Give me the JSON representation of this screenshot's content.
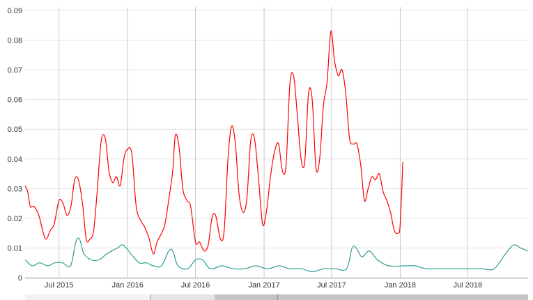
{
  "chart_data": {
    "type": "line",
    "title": "",
    "xlabel": "",
    "ylabel": "",
    "ylim": [
      0,
      0.09
    ],
    "xlim": [
      "2015-04-01",
      "2018-12-10"
    ],
    "grid": {
      "horizontal": true,
      "vertical": true
    },
    "legend": "none",
    "yticks": [
      {
        "value": 0,
        "label": "0"
      },
      {
        "value": 0.01,
        "label": "0.01"
      },
      {
        "value": 0.02,
        "label": "0.02"
      },
      {
        "value": 0.03,
        "label": "0.03"
      },
      {
        "value": 0.04,
        "label": "0.04"
      },
      {
        "value": 0.05,
        "label": "0.05"
      },
      {
        "value": 0.06,
        "label": "0.06"
      },
      {
        "value": 0.07,
        "label": "0.07"
      },
      {
        "value": 0.08,
        "label": "0.08"
      },
      {
        "value": 0.09,
        "label": "0.09"
      }
    ],
    "xticks": [
      {
        "date": "2015-07-01",
        "label": "Jul 2015"
      },
      {
        "date": "2016-01-01",
        "label": "Jan 2016"
      },
      {
        "date": "2016-07-01",
        "label": "Jul 2016"
      },
      {
        "date": "2017-01-01",
        "label": "Jan 2017"
      },
      {
        "date": "2017-07-01",
        "label": "Jul 2017"
      },
      {
        "date": "2018-01-01",
        "label": "Jan 2018"
      },
      {
        "date": "2018-07-01",
        "label": "Jul 2018"
      }
    ],
    "series": [
      {
        "color": "#ff0000",
        "points": [
          [
            "2015-04-01",
            0.031
          ],
          [
            "2015-04-08",
            0.029
          ],
          [
            "2015-04-15",
            0.024
          ],
          [
            "2015-04-25",
            0.024
          ],
          [
            "2015-05-08",
            0.021
          ],
          [
            "2015-05-20",
            0.015
          ],
          [
            "2015-05-28",
            0.013
          ],
          [
            "2015-06-08",
            0.016
          ],
          [
            "2015-06-18",
            0.018
          ],
          [
            "2015-07-01",
            0.026
          ],
          [
            "2015-07-12",
            0.025
          ],
          [
            "2015-07-22",
            0.021
          ],
          [
            "2015-08-02",
            0.024
          ],
          [
            "2015-08-12",
            0.033
          ],
          [
            "2015-08-22",
            0.033
          ],
          [
            "2015-09-02",
            0.025
          ],
          [
            "2015-09-12",
            0.013
          ],
          [
            "2015-09-22",
            0.013
          ],
          [
            "2015-10-02",
            0.016
          ],
          [
            "2015-10-12",
            0.03
          ],
          [
            "2015-10-22",
            0.046
          ],
          [
            "2015-11-02",
            0.047
          ],
          [
            "2015-11-12",
            0.036
          ],
          [
            "2015-11-22",
            0.032
          ],
          [
            "2015-12-02",
            0.034
          ],
          [
            "2015-12-12",
            0.031
          ],
          [
            "2015-12-22",
            0.04
          ],
          [
            "2015-12-30",
            0.043
          ],
          [
            "2016-01-12",
            0.042
          ],
          [
            "2016-01-24",
            0.024
          ],
          [
            "2016-02-06",
            0.019
          ],
          [
            "2016-02-16",
            0.017
          ],
          [
            "2016-02-28",
            0.013
          ],
          [
            "2016-03-10",
            0.008
          ],
          [
            "2016-03-20",
            0.012
          ],
          [
            "2016-04-01",
            0.015
          ],
          [
            "2016-04-10",
            0.018
          ],
          [
            "2016-04-20",
            0.026
          ],
          [
            "2016-05-01",
            0.036
          ],
          [
            "2016-05-08",
            0.048
          ],
          [
            "2016-05-18",
            0.044
          ],
          [
            "2016-05-28",
            0.03
          ],
          [
            "2016-06-08",
            0.026
          ],
          [
            "2016-06-18",
            0.024
          ],
          [
            "2016-07-01",
            0.012
          ],
          [
            "2016-07-12",
            0.012
          ],
          [
            "2016-07-24",
            0.009
          ],
          [
            "2016-08-04",
            0.011
          ],
          [
            "2016-08-14",
            0.02
          ],
          [
            "2016-08-24",
            0.021
          ],
          [
            "2016-09-06",
            0.013
          ],
          [
            "2016-09-16",
            0.016
          ],
          [
            "2016-09-26",
            0.04
          ],
          [
            "2016-10-06",
            0.051
          ],
          [
            "2016-10-16",
            0.045
          ],
          [
            "2016-10-26",
            0.028
          ],
          [
            "2016-11-06",
            0.022
          ],
          [
            "2016-11-16",
            0.027
          ],
          [
            "2016-11-26",
            0.046
          ],
          [
            "2016-12-06",
            0.047
          ],
          [
            "2016-12-16",
            0.035
          ],
          [
            "2016-12-28",
            0.018
          ],
          [
            "2017-01-08",
            0.023
          ],
          [
            "2017-01-18",
            0.034
          ],
          [
            "2017-01-30",
            0.043
          ],
          [
            "2017-02-09",
            0.045
          ],
          [
            "2017-02-19",
            0.036
          ],
          [
            "2017-03-01",
            0.038
          ],
          [
            "2017-03-11",
            0.065
          ],
          [
            "2017-03-21",
            0.068
          ],
          [
            "2017-03-31",
            0.055
          ],
          [
            "2017-04-10",
            0.04
          ],
          [
            "2017-04-20",
            0.039
          ],
          [
            "2017-04-30",
            0.062
          ],
          [
            "2017-05-10",
            0.06
          ],
          [
            "2017-05-20",
            0.037
          ],
          [
            "2017-05-30",
            0.04
          ],
          [
            "2017-06-09",
            0.058
          ],
          [
            "2017-06-19",
            0.066
          ],
          [
            "2017-06-29",
            0.083
          ],
          [
            "2017-07-09",
            0.073
          ],
          [
            "2017-07-19",
            0.068
          ],
          [
            "2017-07-29",
            0.07
          ],
          [
            "2017-08-08",
            0.062
          ],
          [
            "2017-08-18",
            0.047
          ],
          [
            "2017-08-28",
            0.045
          ],
          [
            "2017-09-07",
            0.045
          ],
          [
            "2017-09-17",
            0.038
          ],
          [
            "2017-09-27",
            0.026
          ],
          [
            "2017-10-07",
            0.03
          ],
          [
            "2017-10-17",
            0.034
          ],
          [
            "2017-10-27",
            0.033
          ],
          [
            "2017-11-06",
            0.035
          ],
          [
            "2017-11-16",
            0.029
          ],
          [
            "2017-11-26",
            0.026
          ],
          [
            "2017-12-06",
            0.022
          ],
          [
            "2017-12-16",
            0.016
          ],
          [
            "2017-12-26",
            0.015
          ],
          [
            "2018-01-01",
            0.018
          ],
          [
            "2018-01-08",
            0.039
          ]
        ]
      },
      {
        "color": "#2a9d8f",
        "points": [
          [
            "2015-04-01",
            0.006
          ],
          [
            "2015-04-20",
            0.004
          ],
          [
            "2015-05-10",
            0.005
          ],
          [
            "2015-06-01",
            0.004
          ],
          [
            "2015-06-20",
            0.005
          ],
          [
            "2015-07-10",
            0.005
          ],
          [
            "2015-08-01",
            0.004
          ],
          [
            "2015-08-15",
            0.012
          ],
          [
            "2015-08-25",
            0.013
          ],
          [
            "2015-09-06",
            0.008
          ],
          [
            "2015-09-26",
            0.006
          ],
          [
            "2015-10-16",
            0.006
          ],
          [
            "2015-11-06",
            0.008
          ],
          [
            "2015-11-20",
            0.009
          ],
          [
            "2015-12-05",
            0.01
          ],
          [
            "2015-12-20",
            0.011
          ],
          [
            "2016-01-10",
            0.008
          ],
          [
            "2016-02-01",
            0.005
          ],
          [
            "2016-02-20",
            0.005
          ],
          [
            "2016-03-10",
            0.004
          ],
          [
            "2016-04-01",
            0.004
          ],
          [
            "2016-04-20",
            0.009
          ],
          [
            "2016-05-01",
            0.009
          ],
          [
            "2016-05-15",
            0.004
          ],
          [
            "2016-06-10",
            0.003
          ],
          [
            "2016-07-01",
            0.006
          ],
          [
            "2016-07-20",
            0.006
          ],
          [
            "2016-08-10",
            0.003
          ],
          [
            "2016-09-10",
            0.004
          ],
          [
            "2016-10-10",
            0.003
          ],
          [
            "2016-11-10",
            0.003
          ],
          [
            "2016-12-10",
            0.004
          ],
          [
            "2017-01-10",
            0.003
          ],
          [
            "2017-02-10",
            0.004
          ],
          [
            "2017-03-10",
            0.003
          ],
          [
            "2017-04-10",
            0.003
          ],
          [
            "2017-05-10",
            0.002
          ],
          [
            "2017-06-10",
            0.003
          ],
          [
            "2017-07-10",
            0.003
          ],
          [
            "2017-08-10",
            0.003
          ],
          [
            "2017-08-25",
            0.01
          ],
          [
            "2017-09-05",
            0.01
          ],
          [
            "2017-09-20",
            0.007
          ],
          [
            "2017-10-10",
            0.009
          ],
          [
            "2017-11-01",
            0.006
          ],
          [
            "2017-12-01",
            0.004
          ],
          [
            "2018-01-10",
            0.004
          ],
          [
            "2018-02-10",
            0.004
          ],
          [
            "2018-03-10",
            0.003
          ],
          [
            "2018-04-10",
            0.003
          ],
          [
            "2018-05-10",
            0.003
          ],
          [
            "2018-06-10",
            0.003
          ],
          [
            "2018-07-10",
            0.003
          ],
          [
            "2018-08-10",
            0.003
          ],
          [
            "2018-09-10",
            0.003
          ],
          [
            "2018-10-10",
            0.008
          ],
          [
            "2018-11-01",
            0.011
          ],
          [
            "2018-11-20",
            0.01
          ],
          [
            "2018-12-10",
            0.009
          ]
        ]
      }
    ]
  },
  "navigator": {
    "segments": [
      {
        "color": "#f2f2f2"
      },
      {
        "color": "#e6e6e6"
      },
      {
        "color": "#c4c4c4"
      },
      {
        "color": "#c4c4c4"
      }
    ]
  }
}
